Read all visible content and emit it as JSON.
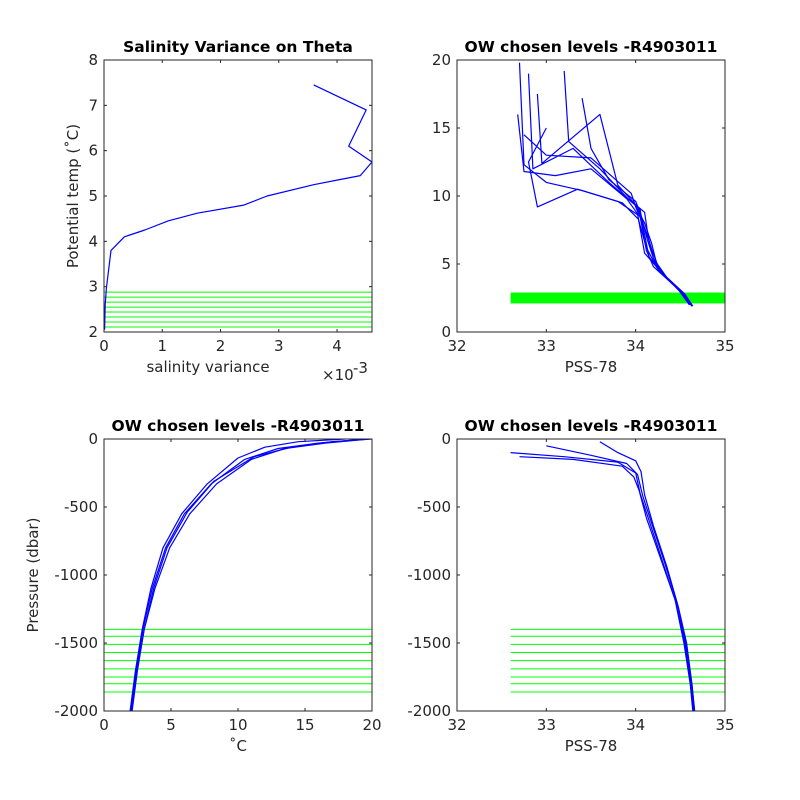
{
  "colors": {
    "profile": "#0000ff",
    "levels": "#00ff00",
    "axis": "#262626",
    "text": "#000000"
  },
  "chart_data": [
    {
      "type": "line",
      "title": "Salinity Variance on Theta",
      "xlabel": "salinity variance",
      "xlabel_exponent": "×10",
      "xlabel_exponent_power": "-3",
      "ylabel": "Potential temp (˚C)",
      "xlim": [
        0,
        0.0046
      ],
      "ylim": [
        2,
        8
      ],
      "xticks": [
        0,
        0.001,
        0.002,
        0.003,
        0.004
      ],
      "xtick_labels": [
        "0",
        "1",
        "2",
        "3",
        "4"
      ],
      "yticks": [
        2,
        3,
        4,
        5,
        6,
        7,
        8
      ],
      "ytick_labels": [
        "2",
        "3",
        "4",
        "5",
        "6",
        "7",
        "8"
      ],
      "series": [
        {
          "x": [
            1e-05,
            2e-05,
            4e-05,
            0.00012,
            0.00035,
            0.0007,
            0.0011,
            0.0016,
            0.0024,
            0.0028,
            0.0036,
            0.004,
            0.0044,
            0.0046,
            0.0042,
            0.0045,
            0.0036
          ],
          "y": [
            2.05,
            2.6,
            2.95,
            3.8,
            4.1,
            4.25,
            4.45,
            4.62,
            4.8,
            5.0,
            5.25,
            5.35,
            5.45,
            5.75,
            6.1,
            6.9,
            7.45
          ]
        }
      ],
      "level_lines": {
        "x_range": [
          0,
          0.0046
        ],
        "y": [
          2.11,
          2.22,
          2.33,
          2.44,
          2.55,
          2.66,
          2.77,
          2.88
        ]
      }
    },
    {
      "type": "line",
      "title": "OW chosen levels -R4903011",
      "xlabel": "PSS-78",
      "ylabel": "",
      "xlim": [
        32,
        35
      ],
      "ylim": [
        0,
        20
      ],
      "xticks": [
        32,
        33,
        34,
        35
      ],
      "xtick_labels": [
        "32",
        "33",
        "34",
        "35"
      ],
      "yticks": [
        0,
        5,
        10,
        15,
        20
      ],
      "ytick_labels": [
        "0",
        "5",
        "10",
        "15",
        "20"
      ],
      "series": [
        {
          "x": [
            32.7,
            32.75,
            33.0,
            33.4,
            33.8,
            34.05,
            34.12,
            34.2,
            34.5,
            34.6
          ],
          "y": [
            19.8,
            12.3,
            11.0,
            10.4,
            9.6,
            8.5,
            6.0,
            4.8,
            3.0,
            2.1
          ]
        },
        {
          "x": [
            32.8,
            32.85,
            33.3,
            33.7,
            34.0,
            34.1,
            34.18,
            34.25,
            34.52,
            34.62
          ],
          "y": [
            19.0,
            12.0,
            13.5,
            11.0,
            9.3,
            8.0,
            6.5,
            4.6,
            2.9,
            2.0
          ]
        },
        {
          "x": [
            32.68,
            32.75,
            33.1,
            33.5,
            33.9,
            34.02,
            34.1,
            34.22,
            34.48,
            34.6
          ],
          "y": [
            16.0,
            11.8,
            11.5,
            12.0,
            9.8,
            8.7,
            5.8,
            4.9,
            3.1,
            2.0
          ]
        },
        {
          "x": [
            32.9,
            32.95,
            33.6,
            33.8,
            34.05,
            34.08,
            34.15,
            34.3,
            34.55,
            34.63
          ],
          "y": [
            17.5,
            12.4,
            16.0,
            10.8,
            9.0,
            7.8,
            5.5,
            4.3,
            2.8,
            1.9
          ]
        },
        {
          "x": [
            33.0,
            32.8,
            32.9,
            33.35,
            33.85,
            34.03,
            34.12,
            34.24,
            34.5,
            34.61
          ],
          "y": [
            15.0,
            12.5,
            9.2,
            10.5,
            9.5,
            8.3,
            6.2,
            4.7,
            3.0,
            2.0
          ]
        },
        {
          "x": [
            33.2,
            33.25,
            33.6,
            33.9,
            34.1,
            34.14,
            34.2,
            34.35,
            34.56,
            34.64
          ],
          "y": [
            19.2,
            14.0,
            12.0,
            9.9,
            8.8,
            7.0,
            5.4,
            4.0,
            2.7,
            1.9
          ]
        },
        {
          "x": [
            32.75,
            33.0,
            33.5,
            33.95,
            34.0,
            34.11,
            34.19,
            34.27,
            34.5,
            34.62
          ],
          "y": [
            14.5,
            13.0,
            12.8,
            10.2,
            9.2,
            7.5,
            5.9,
            4.5,
            2.95,
            2.0
          ]
        },
        {
          "x": [
            33.4,
            33.5,
            33.7,
            34.0,
            34.06,
            34.13,
            34.21,
            34.32,
            34.54,
            34.63
          ],
          "y": [
            17.2,
            13.5,
            11.2,
            9.6,
            8.6,
            6.8,
            5.2,
            4.2,
            2.8,
            1.9
          ]
        }
      ],
      "level_band": {
        "x_range": [
          32.6,
          35
        ],
        "y_range": [
          2.1,
          2.9
        ]
      }
    },
    {
      "type": "line",
      "title": "OW chosen levels -R4903011",
      "xlabel": "˚C",
      "ylabel": "Pressure (dbar)",
      "xlim": [
        0,
        20
      ],
      "ylim": [
        -2000,
        0
      ],
      "xticks": [
        0,
        5,
        10,
        15,
        20
      ],
      "xtick_labels": [
        "0",
        "5",
        "10",
        "15",
        "20"
      ],
      "yticks": [
        -2000,
        -1500,
        -1000,
        -500,
        0
      ],
      "ytick_labels": [
        "-2000",
        "-1500",
        "-1000",
        "-500",
        "0"
      ],
      "series": [
        {
          "x": [
            2.0,
            2.4,
            2.9,
            3.6,
            4.6,
            6.0,
            8.0,
            10.5,
            13.0,
            16.0,
            19.5
          ],
          "y": [
            -2000,
            -1700,
            -1400,
            -1100,
            -800,
            -550,
            -330,
            -150,
            -70,
            -30,
            0
          ]
        },
        {
          "x": [
            2.1,
            2.5,
            3.0,
            3.8,
            4.9,
            6.4,
            8.4,
            11.0,
            13.5,
            16.5,
            19.8
          ],
          "y": [
            -2000,
            -1700,
            -1400,
            -1100,
            -800,
            -550,
            -330,
            -150,
            -70,
            -30,
            0
          ]
        },
        {
          "x": [
            1.95,
            2.35,
            2.85,
            3.5,
            4.4,
            5.8,
            7.7,
            10.0,
            12.0,
            14.5,
            18.0
          ],
          "y": [
            -2000,
            -1700,
            -1400,
            -1100,
            -800,
            -550,
            -330,
            -140,
            -60,
            -20,
            0
          ]
        },
        {
          "x": [
            2.05,
            2.45,
            3.0,
            3.7,
            4.7,
            6.2,
            8.2,
            11.2,
            14.0,
            17.0,
            20.0
          ],
          "y": [
            -2000,
            -1700,
            -1400,
            -1100,
            -800,
            -540,
            -310,
            -130,
            -60,
            -20,
            0
          ]
        }
      ],
      "level_lines": {
        "x_range": [
          0,
          20
        ],
        "y": [
          -1400,
          -1450,
          -1510,
          -1570,
          -1630,
          -1690,
          -1750,
          -1800,
          -1860
        ]
      }
    },
    {
      "type": "line",
      "title": "OW chosen levels -R4903011",
      "xlabel": "PSS-78",
      "ylabel": "",
      "xlim": [
        32,
        35
      ],
      "ylim": [
        -2000,
        0
      ],
      "xticks": [
        32,
        33,
        34,
        35
      ],
      "xtick_labels": [
        "32",
        "33",
        "34",
        "35"
      ],
      "yticks": [
        -2000,
        -1500,
        -1000,
        -500,
        0
      ],
      "ytick_labels": [
        "-2000",
        "-1500",
        "-1000",
        "-500",
        "0"
      ],
      "series": [
        {
          "x": [
            32.6,
            33.2,
            33.8,
            34.0,
            34.05,
            34.15,
            34.3,
            34.45,
            34.55,
            34.62,
            34.65
          ],
          "y": [
            -100,
            -130,
            -170,
            -250,
            -400,
            -600,
            -900,
            -1200,
            -1500,
            -1800,
            -2000
          ]
        },
        {
          "x": [
            33.0,
            33.5,
            33.9,
            34.02,
            34.08,
            34.18,
            34.33,
            34.47,
            34.56,
            34.63,
            34.66
          ],
          "y": [
            -50,
            -120,
            -180,
            -260,
            -420,
            -620,
            -920,
            -1220,
            -1500,
            -1800,
            -2000
          ]
        },
        {
          "x": [
            32.7,
            33.3,
            33.85,
            33.98,
            34.04,
            34.12,
            34.28,
            34.44,
            34.54,
            34.61,
            34.64
          ],
          "y": [
            -130,
            -150,
            -200,
            -280,
            -380,
            -580,
            -880,
            -1180,
            -1500,
            -1800,
            -2000
          ]
        },
        {
          "x": [
            33.6,
            33.8,
            34.0,
            34.06,
            34.1,
            34.2,
            34.35,
            34.48,
            34.57,
            34.63,
            34.66
          ],
          "y": [
            -20,
            -100,
            -160,
            -240,
            -410,
            -640,
            -940,
            -1240,
            -1500,
            -1800,
            -2000
          ]
        }
      ],
      "level_lines": {
        "x_range": [
          32.6,
          35
        ],
        "y": [
          -1400,
          -1450,
          -1510,
          -1570,
          -1630,
          -1690,
          -1750,
          -1800,
          -1860
        ]
      }
    }
  ]
}
